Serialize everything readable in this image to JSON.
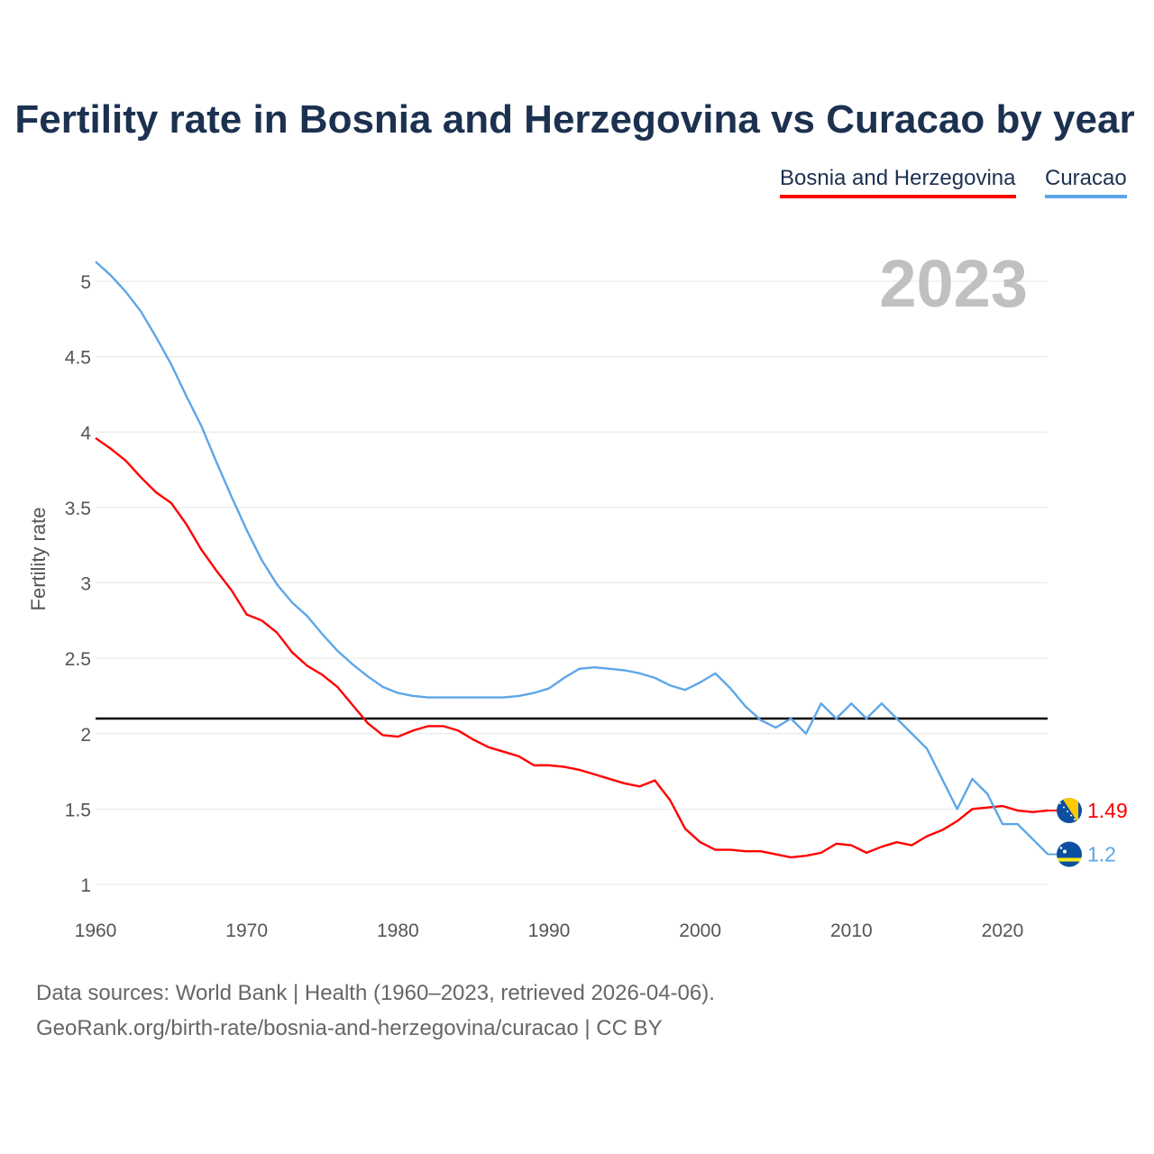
{
  "chart_data": {
    "type": "line",
    "title": "Fertility rate in Bosnia and Herzegovina vs Curacao by year",
    "xlabel": "",
    "ylabel": "Fertility rate",
    "year_label": "2023",
    "xlim": [
      1960,
      2023
    ],
    "ylim": [
      0.82,
      5.2
    ],
    "xticks": [
      1960,
      1970,
      1980,
      1990,
      2000,
      2010,
      2020
    ],
    "yticks": [
      1,
      1.5,
      2,
      2.5,
      3,
      3.5,
      4,
      4.5,
      5
    ],
    "ytick_labels": [
      "1",
      "1.5",
      "2",
      "2.5",
      "3",
      "3.5",
      "4",
      "4.5",
      "5"
    ],
    "reference_line": 2.1,
    "grid": true,
    "legend_position": "top-right",
    "x": [
      1960,
      1961,
      1962,
      1963,
      1964,
      1965,
      1966,
      1967,
      1968,
      1969,
      1970,
      1971,
      1972,
      1973,
      1974,
      1975,
      1976,
      1977,
      1978,
      1979,
      1980,
      1981,
      1982,
      1983,
      1984,
      1985,
      1986,
      1987,
      1988,
      1989,
      1990,
      1991,
      1992,
      1993,
      1994,
      1995,
      1996,
      1997,
      1998,
      1999,
      2000,
      2001,
      2002,
      2003,
      2004,
      2005,
      2006,
      2007,
      2008,
      2009,
      2010,
      2011,
      2012,
      2013,
      2014,
      2015,
      2016,
      2017,
      2018,
      2019,
      2020,
      2021,
      2022,
      2023
    ],
    "series": [
      {
        "name": "Bosnia and Herzegovina",
        "color": "#ff0000",
        "end_label": "1.49",
        "values": [
          3.96,
          3.89,
          3.81,
          3.7,
          3.6,
          3.53,
          3.39,
          3.22,
          3.08,
          2.95,
          2.79,
          2.75,
          2.67,
          2.54,
          2.45,
          2.39,
          2.31,
          2.19,
          2.07,
          1.99,
          1.98,
          2.02,
          2.05,
          2.05,
          2.02,
          1.96,
          1.91,
          1.88,
          1.85,
          1.79,
          1.79,
          1.78,
          1.76,
          1.73,
          1.7,
          1.67,
          1.65,
          1.69,
          1.56,
          1.37,
          1.28,
          1.23,
          1.23,
          1.22,
          1.22,
          1.2,
          1.18,
          1.19,
          1.21,
          1.27,
          1.26,
          1.21,
          1.25,
          1.28,
          1.26,
          1.32,
          1.36,
          1.42,
          1.5,
          1.51,
          1.52,
          1.49,
          1.48,
          1.49
        ]
      },
      {
        "name": "Curacao",
        "color": "#5ea6e8",
        "end_label": "1.2",
        "values": [
          5.13,
          5.04,
          4.93,
          4.8,
          4.63,
          4.45,
          4.24,
          4.04,
          3.8,
          3.57,
          3.35,
          3.15,
          2.99,
          2.87,
          2.78,
          2.66,
          2.55,
          2.46,
          2.38,
          2.31,
          2.27,
          2.25,
          2.24,
          2.24,
          2.24,
          2.24,
          2.24,
          2.24,
          2.25,
          2.27,
          2.3,
          2.37,
          2.43,
          2.44,
          2.43,
          2.42,
          2.4,
          2.37,
          2.32,
          2.29,
          2.34,
          2.4,
          2.3,
          2.18,
          2.09,
          2.04,
          2.1,
          2.0,
          2.2,
          2.1,
          2.2,
          2.1,
          2.2,
          2.1,
          2.0,
          1.9,
          1.7,
          1.5,
          1.7,
          1.6,
          1.4,
          1.4,
          1.3,
          1.2
        ]
      }
    ]
  },
  "footer": {
    "source": "Data sources: World Bank | Health (1960–2023, retrieved 2026-04-06).",
    "credit": "GeoRank.org/birth-rate/bosnia-and-herzegovina/curacao | CC BY"
  }
}
